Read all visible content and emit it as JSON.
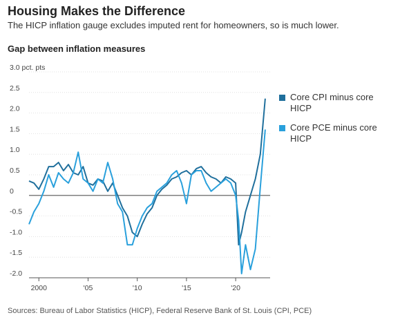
{
  "header": {
    "title": "Housing Makes the Difference",
    "subtitle": "The HICP inflation gauge excludes imputed rent for homeowners, so is much lower."
  },
  "footer": {
    "source": "Sources: Bureau of Labor Statistics (HICP), Federal Reserve Bank of St. Louis (CPI, PCE)"
  },
  "chart_data": {
    "type": "line",
    "title": "Gap between inflation measures",
    "xlabel": "",
    "ylabel": "",
    "unit_label": "3.0 pct. pts",
    "ylim": [
      -2.0,
      3.0
    ],
    "xlim": [
      1999,
      2023.5
    ],
    "y_ticks": [
      -2.0,
      -1.5,
      -1.0,
      -0.5,
      0,
      0.5,
      1.0,
      1.5,
      2.0,
      2.5,
      3.0
    ],
    "y_tick_labels": [
      "-2.0",
      "-1.5",
      "-1.0",
      "-0.5",
      "0",
      "0.5",
      "1.0",
      "1.5",
      "2.0",
      "2.5",
      "3.0 pct. pts"
    ],
    "x_ticks": [
      2000,
      2005,
      2010,
      2015,
      2020
    ],
    "x_tick_labels": [
      "2000",
      "'05",
      "'10",
      "'15",
      "'20"
    ],
    "grid": true,
    "legend_position": "right",
    "series": [
      {
        "name": "Core CPI minus core HICP",
        "color": "#1f6f9c",
        "points": [
          [
            1999.0,
            0.35
          ],
          [
            1999.5,
            0.3
          ],
          [
            2000.0,
            0.15
          ],
          [
            2000.5,
            0.4
          ],
          [
            2001.0,
            0.7
          ],
          [
            2001.5,
            0.7
          ],
          [
            2002.0,
            0.8
          ],
          [
            2002.5,
            0.6
          ],
          [
            2003.0,
            0.75
          ],
          [
            2003.5,
            0.55
          ],
          [
            2004.0,
            0.5
          ],
          [
            2004.5,
            0.7
          ],
          [
            2005.0,
            0.3
          ],
          [
            2005.5,
            0.25
          ],
          [
            2006.0,
            0.4
          ],
          [
            2006.5,
            0.35
          ],
          [
            2007.0,
            0.1
          ],
          [
            2007.5,
            0.3
          ],
          [
            2008.0,
            0.0
          ],
          [
            2008.5,
            -0.3
          ],
          [
            2009.0,
            -0.5
          ],
          [
            2009.5,
            -0.9
          ],
          [
            2010.0,
            -1.0
          ],
          [
            2010.5,
            -0.7
          ],
          [
            2011.0,
            -0.45
          ],
          [
            2011.5,
            -0.3
          ],
          [
            2012.0,
            0.0
          ],
          [
            2012.5,
            0.15
          ],
          [
            2013.0,
            0.25
          ],
          [
            2013.5,
            0.4
          ],
          [
            2014.0,
            0.45
          ],
          [
            2014.5,
            0.55
          ],
          [
            2015.0,
            0.6
          ],
          [
            2015.5,
            0.5
          ],
          [
            2016.0,
            0.65
          ],
          [
            2016.5,
            0.7
          ],
          [
            2017.0,
            0.55
          ],
          [
            2017.5,
            0.45
          ],
          [
            2018.0,
            0.4
          ],
          [
            2018.5,
            0.3
          ],
          [
            2019.0,
            0.45
          ],
          [
            2019.5,
            0.4
          ],
          [
            2020.0,
            0.3
          ],
          [
            2020.3,
            -1.2
          ],
          [
            2020.6,
            -0.9
          ],
          [
            2021.0,
            -0.4
          ],
          [
            2021.5,
            0.0
          ],
          [
            2022.0,
            0.4
          ],
          [
            2022.5,
            1.0
          ],
          [
            2023.0,
            2.35
          ]
        ]
      },
      {
        "name": "Core PCE minus core HICP",
        "color": "#29a0dc",
        "points": [
          [
            1999.0,
            -0.7
          ],
          [
            1999.5,
            -0.4
          ],
          [
            2000.0,
            -0.2
          ],
          [
            2000.5,
            0.1
          ],
          [
            2001.0,
            0.5
          ],
          [
            2001.5,
            0.2
          ],
          [
            2002.0,
            0.55
          ],
          [
            2002.5,
            0.4
          ],
          [
            2003.0,
            0.3
          ],
          [
            2003.5,
            0.55
          ],
          [
            2004.0,
            1.05
          ],
          [
            2004.5,
            0.4
          ],
          [
            2005.0,
            0.3
          ],
          [
            2005.5,
            0.1
          ],
          [
            2006.0,
            0.4
          ],
          [
            2006.5,
            0.3
          ],
          [
            2007.0,
            0.8
          ],
          [
            2007.5,
            0.4
          ],
          [
            2008.0,
            -0.2
          ],
          [
            2008.5,
            -0.4
          ],
          [
            2009.0,
            -1.2
          ],
          [
            2009.5,
            -1.2
          ],
          [
            2010.0,
            -0.8
          ],
          [
            2010.5,
            -0.5
          ],
          [
            2011.0,
            -0.3
          ],
          [
            2011.5,
            -0.2
          ],
          [
            2012.0,
            0.1
          ],
          [
            2012.5,
            0.2
          ],
          [
            2013.0,
            0.3
          ],
          [
            2013.5,
            0.5
          ],
          [
            2014.0,
            0.6
          ],
          [
            2014.5,
            0.3
          ],
          [
            2015.0,
            -0.2
          ],
          [
            2015.5,
            0.5
          ],
          [
            2016.0,
            0.6
          ],
          [
            2016.5,
            0.6
          ],
          [
            2017.0,
            0.3
          ],
          [
            2017.5,
            0.1
          ],
          [
            2018.0,
            0.2
          ],
          [
            2018.5,
            0.3
          ],
          [
            2019.0,
            0.4
          ],
          [
            2019.5,
            0.3
          ],
          [
            2020.0,
            0.0
          ],
          [
            2020.3,
            -0.6
          ],
          [
            2020.6,
            -1.9
          ],
          [
            2021.0,
            -1.2
          ],
          [
            2021.5,
            -1.8
          ],
          [
            2022.0,
            -1.3
          ],
          [
            2022.5,
            0.2
          ],
          [
            2023.0,
            1.6
          ]
        ]
      }
    ]
  }
}
